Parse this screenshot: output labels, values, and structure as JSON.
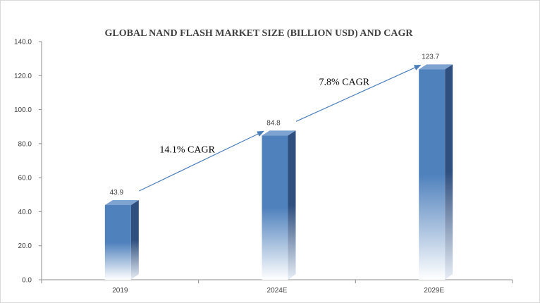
{
  "chart_data": {
    "type": "bar",
    "title": "GLOBAL NAND FLASH MARKET SIZE (BILLION USD) AND CAGR",
    "categories": [
      "2019",
      "2024E",
      "2029E"
    ],
    "values": [
      43.9,
      84.8,
      123.7
    ],
    "data_labels": [
      "43.9",
      "84.8",
      "123.7"
    ],
    "xlabel": "",
    "ylabel": "",
    "ylim": [
      0,
      140
    ],
    "y_ticks": [
      "0.0",
      "20.0",
      "40.0",
      "60.0",
      "80.0",
      "100.0",
      "120.0",
      "140.0"
    ],
    "grid": false,
    "legend": "none",
    "style": "3d-column-gradient",
    "annotations": [
      {
        "text": "14.1% CAGR",
        "from_category": 0,
        "to_category": 1
      },
      {
        "text": "7.8% CAGR",
        "from_category": 1,
        "to_category": 2
      }
    ],
    "colors": {
      "bar_front": "#4f81bd",
      "bar_side": "#2f4f7f",
      "bar_top": "#7fa3d0",
      "arrow": "#4a7ebb",
      "axis": "#8c8c8c"
    }
  }
}
